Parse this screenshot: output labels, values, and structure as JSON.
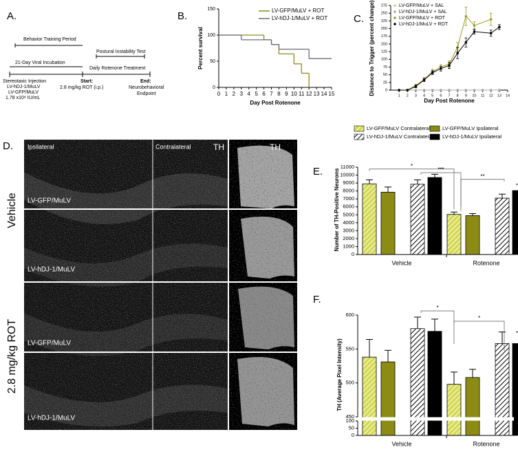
{
  "panel_a": {
    "label": "A.",
    "behavior": "Behavior Training Period",
    "postural": "Postural Instability Test",
    "incubation": "21-Day Viral Incubation",
    "rotenone_treatment": "Daily Rotenone Treatment",
    "injection": [
      "Stereotaxic Injection",
      "LV-hDJ-1/MuLV",
      "LV-GFP/MuLV",
      "1.78 x10⁸ IU/mL"
    ],
    "start_label": "Start:",
    "start_text": "2.8 mg/kg ROT (i.p.)",
    "end_label": "End:",
    "end_text": [
      "Neurobehavioral",
      "Endpoint"
    ]
  },
  "panel_d": {
    "label": "D.",
    "columns": [
      "Ipsilateral",
      "Contralateral",
      "TH",
      "TH"
    ],
    "conditions": [
      "Vehicle",
      "2.8 mg/kg ROT"
    ],
    "rows": [
      "LV-GFP/MuLV",
      "LV-hDJ-1/MuLV",
      "LV-GFP/MuLV",
      "LV-hDJ-1/MuLV"
    ]
  },
  "chart_data": [
    {
      "type": "step",
      "label": "B.",
      "ylabel": "Percent survival",
      "xlabel": "Day Post Rotenone",
      "xlim": [
        0,
        15
      ],
      "xticks": [
        0,
        1,
        2,
        3,
        4,
        5,
        6,
        7,
        8,
        9,
        10,
        11,
        12,
        13,
        14,
        15
      ],
      "ylim": [
        0,
        150
      ],
      "yticks": [
        0,
        50,
        100,
        150
      ],
      "series": [
        {
          "name": "LV-GFP/MuLV + ROT",
          "color": "#8c8c14",
          "x": [
            0,
            6,
            7,
            8,
            10,
            11,
            12
          ],
          "values": [
            100,
            91,
            82,
            64,
            45,
            27,
            0
          ]
        },
        {
          "name": "LV-hDJ-1/MuLV + ROT",
          "color": "#6b6b80",
          "x": [
            0,
            3,
            7,
            8,
            12,
            15
          ],
          "values": [
            100,
            91,
            82,
            73,
            55,
            55
          ]
        }
      ]
    },
    {
      "type": "line",
      "label": "C.",
      "ylabel": "Distance to Trigger (percent change)",
      "xlabel": "Day Post Rotenone",
      "xlim": [
        0,
        14
      ],
      "xticks": [
        1,
        2,
        3,
        4,
        5,
        6,
        7,
        8,
        9,
        10,
        11,
        12,
        13,
        14
      ],
      "ylim": [
        0,
        275
      ],
      "yticks": [
        0,
        25,
        50,
        75,
        100,
        125,
        150,
        175,
        200,
        225,
        250,
        275
      ],
      "series": [
        {
          "name": "LV-GFP/MuLV + SAL",
          "color": "#cdd47a",
          "x": [
            1,
            2,
            3,
            4,
            5,
            6,
            7,
            8,
            9,
            10,
            11,
            12,
            13
          ],
          "values": [
            0,
            0,
            0,
            0,
            0,
            0,
            0,
            0,
            0,
            0,
            0,
            0,
            0
          ]
        },
        {
          "name": "LV-hDJ-1/MuLV + SAL",
          "color": "#a8a8a8",
          "x": [
            1,
            2,
            3,
            4,
            5,
            6,
            7,
            8,
            9,
            10,
            11,
            12,
            13
          ],
          "values": [
            0,
            0,
            0,
            0,
            0,
            0,
            0,
            0,
            0,
            0,
            0,
            0,
            0
          ]
        },
        {
          "name": "LV-GFP/MuLV + ROT",
          "color": "#9a9a1e",
          "x": [
            1,
            2,
            3,
            4,
            5,
            6,
            7,
            8,
            9,
            10,
            12
          ],
          "values": [
            0,
            0,
            15,
            35,
            60,
            75,
            85,
            140,
            240,
            210,
            230
          ],
          "errors": [
            0,
            0,
            4,
            6,
            8,
            8,
            10,
            15,
            30,
            12,
            20
          ]
        },
        {
          "name": "LV-hDJ-1/MuLV + ROT",
          "color": "#000000",
          "x": [
            1,
            2,
            3,
            4,
            5,
            6,
            7,
            8,
            9,
            10,
            12,
            13
          ],
          "values": [
            0,
            0,
            12,
            33,
            57,
            70,
            80,
            120,
            155,
            190,
            185,
            205
          ],
          "errors": [
            0,
            0,
            4,
            5,
            6,
            8,
            10,
            18,
            15,
            8,
            10,
            8
          ]
        }
      ]
    },
    {
      "type": "bar",
      "label": "E.",
      "ylabel": "Number of TH-Positive Neurons",
      "categories": [
        "Vehicle",
        "Rotenone"
      ],
      "ylim": [
        0,
        11000
      ],
      "yticks": [
        0,
        1000,
        2000,
        3000,
        4000,
        5000,
        6000,
        7000,
        8000,
        9000,
        10000,
        11000
      ],
      "significance": [
        "*",
        "***",
        "**"
      ],
      "series": [
        {
          "name": "LV-GFP/MuLV Contralateral",
          "color": "#d4d94f",
          "hatched": true,
          "values": [
            8900,
            5050
          ],
          "errors": [
            500,
            300
          ]
        },
        {
          "name": "LV-hDJ-1/MuLV Contralateral",
          "color": "#ffffff",
          "hatched": true,
          "values": [
            8850,
            7100
          ],
          "errors": [
            550,
            500
          ]
        },
        {
          "name": "LV-GFP/MuLV Ipsilateral",
          "color": "#8c8c14",
          "hatched": false,
          "values": [
            7850,
            4900
          ],
          "errors": [
            650,
            250
          ]
        },
        {
          "name": "LV-hDJ-1/MuLV Ipsilateral",
          "color": "#000000",
          "hatched": false,
          "values": [
            9700,
            8050
          ],
          "errors": [
            400,
            800
          ]
        }
      ]
    },
    {
      "type": "bar",
      "label": "F.",
      "ylabel": "TH (Average Pixel Intensity)",
      "categories": [
        "Vehicle",
        "Rotenone"
      ],
      "ylim": [
        0,
        600
      ],
      "axis_break": [
        100,
        450
      ],
      "yticks": [
        0,
        50,
        100,
        450,
        500,
        550,
        600
      ],
      "significance": [
        "*",
        "*"
      ],
      "series": [
        {
          "color": "#d4d94f",
          "hatched": true,
          "values": [
            538,
            498
          ],
          "errors": [
            26,
            18
          ]
        },
        {
          "color": "#ffffff",
          "hatched": true,
          "values": [
            580,
            558
          ],
          "errors": [
            17,
            17
          ]
        },
        {
          "color": "#8c8c14",
          "hatched": false,
          "values": [
            531,
            508
          ],
          "errors": [
            17,
            12
          ]
        },
        {
          "color": "#000000",
          "hatched": false,
          "values": [
            576,
            558
          ],
          "errors": [
            18,
            17
          ]
        }
      ]
    }
  ]
}
